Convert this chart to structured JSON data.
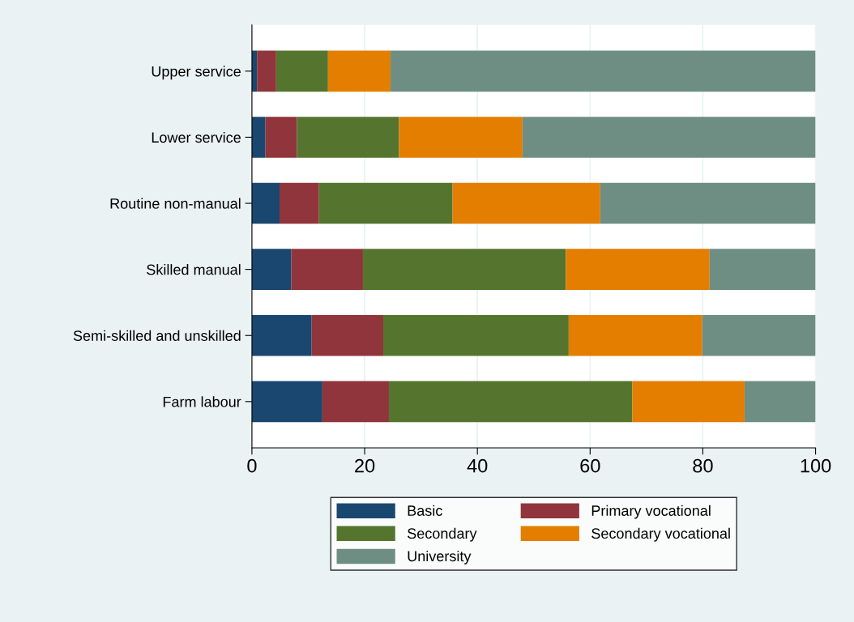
{
  "chart_data": {
    "type": "bar",
    "orientation": "horizontal",
    "stacked": true,
    "categories": [
      "Upper service",
      "Lower service",
      "Routine non-manual",
      "Skilled manual",
      "Semi-skilled and unskilled",
      "Farm labour"
    ],
    "series": [
      {
        "name": "Basic",
        "color": "#1a476f",
        "values": [
          0.9,
          2.4,
          4.9,
          7.0,
          10.6,
          12.5
        ]
      },
      {
        "name": "Primary vocational",
        "color": "#90353b",
        "values": [
          3.4,
          5.6,
          7.0,
          12.7,
          12.7,
          11.8
        ]
      },
      {
        "name": "Secondary",
        "color": "#55752f",
        "values": [
          9.2,
          18.1,
          23.7,
          36.0,
          32.9,
          43.2
        ]
      },
      {
        "name": "Secondary vocational",
        "color": "#e37e00",
        "values": [
          11.1,
          21.9,
          26.2,
          25.5,
          23.7,
          19.9
        ]
      },
      {
        "name": "University",
        "color": "#6e8e84",
        "values": [
          75.4,
          52.0,
          38.2,
          18.8,
          20.1,
          12.6
        ]
      }
    ],
    "xlim": [
      0,
      100
    ],
    "xticks": [
      0,
      20,
      40,
      60,
      80,
      100
    ],
    "grid": "x",
    "legend": "bottom"
  }
}
